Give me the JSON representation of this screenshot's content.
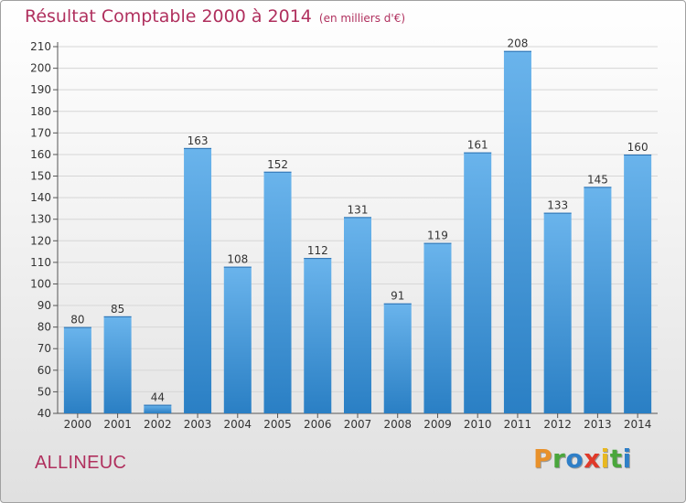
{
  "page": {
    "title": "Résultat Comptable 2000 à 2014",
    "unit_note": "(en milliers d'€)",
    "commune": "ALLINEUC",
    "logo": {
      "text": "Proxiti",
      "letters": [
        {
          "ch": "P",
          "color": "#e8912a"
        },
        {
          "ch": "r",
          "color": "#4aa63c"
        },
        {
          "ch": "o",
          "color": "#2f7fc7"
        },
        {
          "ch": "x",
          "color": "#e03a2a"
        },
        {
          "ch": "i",
          "color": "#e8b820"
        },
        {
          "ch": "t",
          "color": "#4aa63c"
        },
        {
          "ch": "i",
          "color": "#2f7fc7"
        }
      ]
    }
  },
  "colors": {
    "title": "#b0305e",
    "bar_light": "#6ab4ec",
    "bar_dark": "#2a7fc4",
    "grid": "#d6d6d6"
  },
  "chart_data": {
    "type": "bar",
    "title": "Résultat Comptable 2000 à 2014",
    "xlabel": "",
    "ylabel": "",
    "categories": [
      "2000",
      "2001",
      "2002",
      "2003",
      "2004",
      "2005",
      "2006",
      "2007",
      "2008",
      "2009",
      "2010",
      "2011",
      "2012",
      "2013",
      "2014"
    ],
    "values": [
      80,
      85,
      44,
      163,
      108,
      152,
      112,
      131,
      91,
      119,
      161,
      208,
      133,
      145,
      160
    ],
    "ylim": [
      40,
      210
    ],
    "yticks": [
      40,
      50,
      60,
      70,
      80,
      90,
      100,
      110,
      120,
      130,
      140,
      150,
      160,
      170,
      180,
      190,
      200,
      210
    ],
    "grid": true,
    "data_labels": true
  }
}
